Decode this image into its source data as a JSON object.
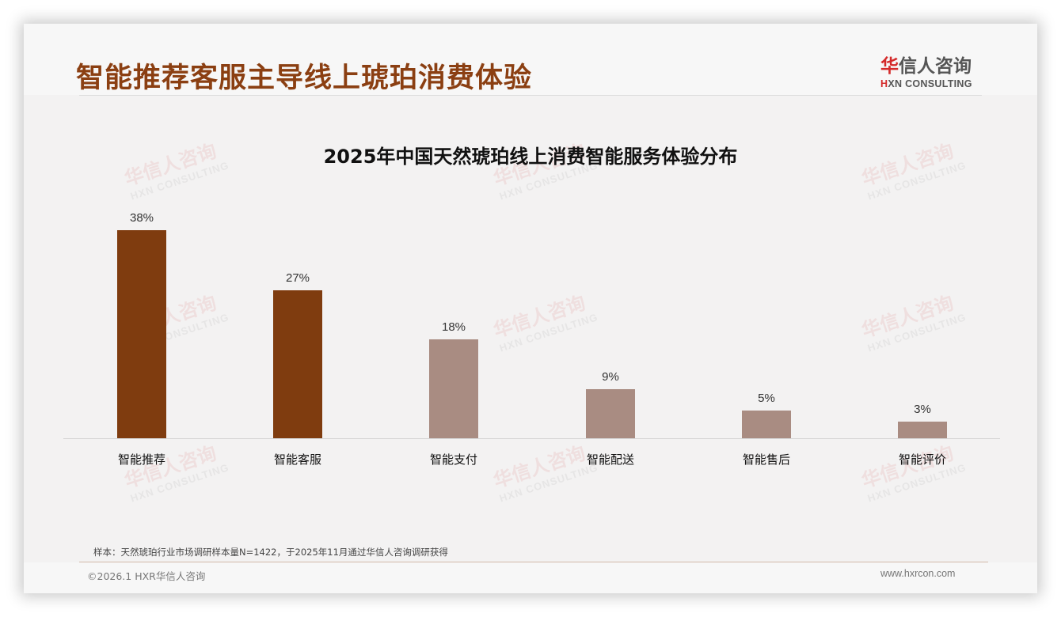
{
  "header": {
    "title": "智能推荐客服主导线上琥珀消费体验",
    "logo": {
      "cn_accent": "华",
      "cn_rest": "信人咨询",
      "en_accent": "H",
      "en_rest": "XN CONSULTING"
    }
  },
  "watermark": {
    "cn": "华信人咨询",
    "en": "HXN CONSULTING"
  },
  "colors": {
    "title": "#8b3f12",
    "bar_primary": "#7f3c0f",
    "bar_secondary": "#a98c82",
    "logo_accent": "#d42a2a"
  },
  "chart_data": {
    "type": "bar",
    "title": "2025年中国天然琥珀线上消费智能服务体验分布",
    "xlabel": "",
    "ylabel": "",
    "categories": [
      "智能推荐",
      "智能客服",
      "智能支付",
      "智能配送",
      "智能售后",
      "智能评价"
    ],
    "values": [
      38,
      27,
      18,
      9,
      5,
      3
    ],
    "value_labels": [
      "38%",
      "27%",
      "18%",
      "9%",
      "5%",
      "3%"
    ],
    "unit": "%",
    "ylim": [
      0,
      40
    ],
    "grid": false,
    "legend": "none",
    "highlight": [
      true,
      true,
      false,
      false,
      false,
      false
    ]
  },
  "footer": {
    "note": "样本：天然琥珀行业市场调研样本量N=1422，于2025年11月通过华信人咨询调研获得",
    "copyright": "©2026.1 HXR华信人咨询",
    "website": "www.hxrcon.com"
  }
}
